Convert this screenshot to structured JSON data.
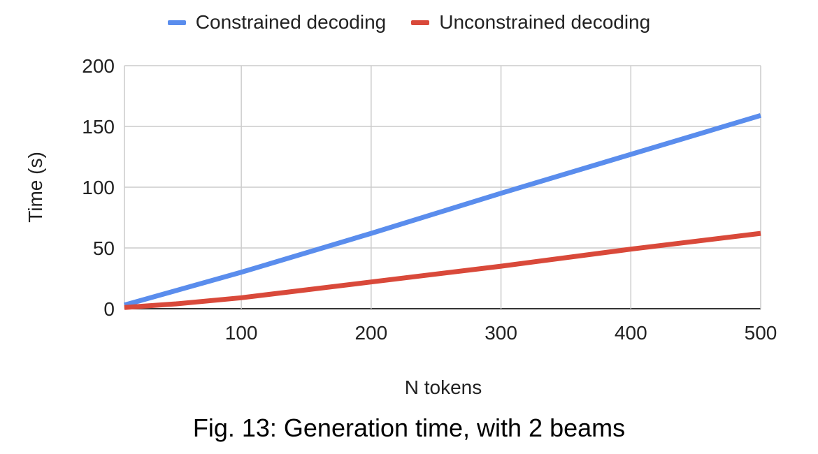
{
  "chart_data": {
    "type": "line",
    "title": "",
    "xlabel": "N tokens",
    "ylabel": "Time (s)",
    "xlim": [
      10,
      500
    ],
    "ylim": [
      0,
      200
    ],
    "x_ticks": [
      100,
      200,
      300,
      400,
      500
    ],
    "y_ticks": [
      0,
      50,
      100,
      150,
      200
    ],
    "grid": true,
    "legend_position": "top",
    "series": [
      {
        "name": "Constrained decoding",
        "color": "#5a8ded",
        "x": [
          10,
          50,
          100,
          200,
          300,
          400,
          500
        ],
        "y": [
          3,
          15,
          30,
          62,
          95,
          127,
          159
        ]
      },
      {
        "name": "Unconstrained decoding",
        "color": "#d9493a",
        "x": [
          10,
          50,
          100,
          200,
          300,
          400,
          500
        ],
        "y": [
          1,
          4,
          9,
          22,
          35,
          49,
          62
        ]
      }
    ]
  },
  "caption": "Fig. 13: Generation time, with 2 beams"
}
